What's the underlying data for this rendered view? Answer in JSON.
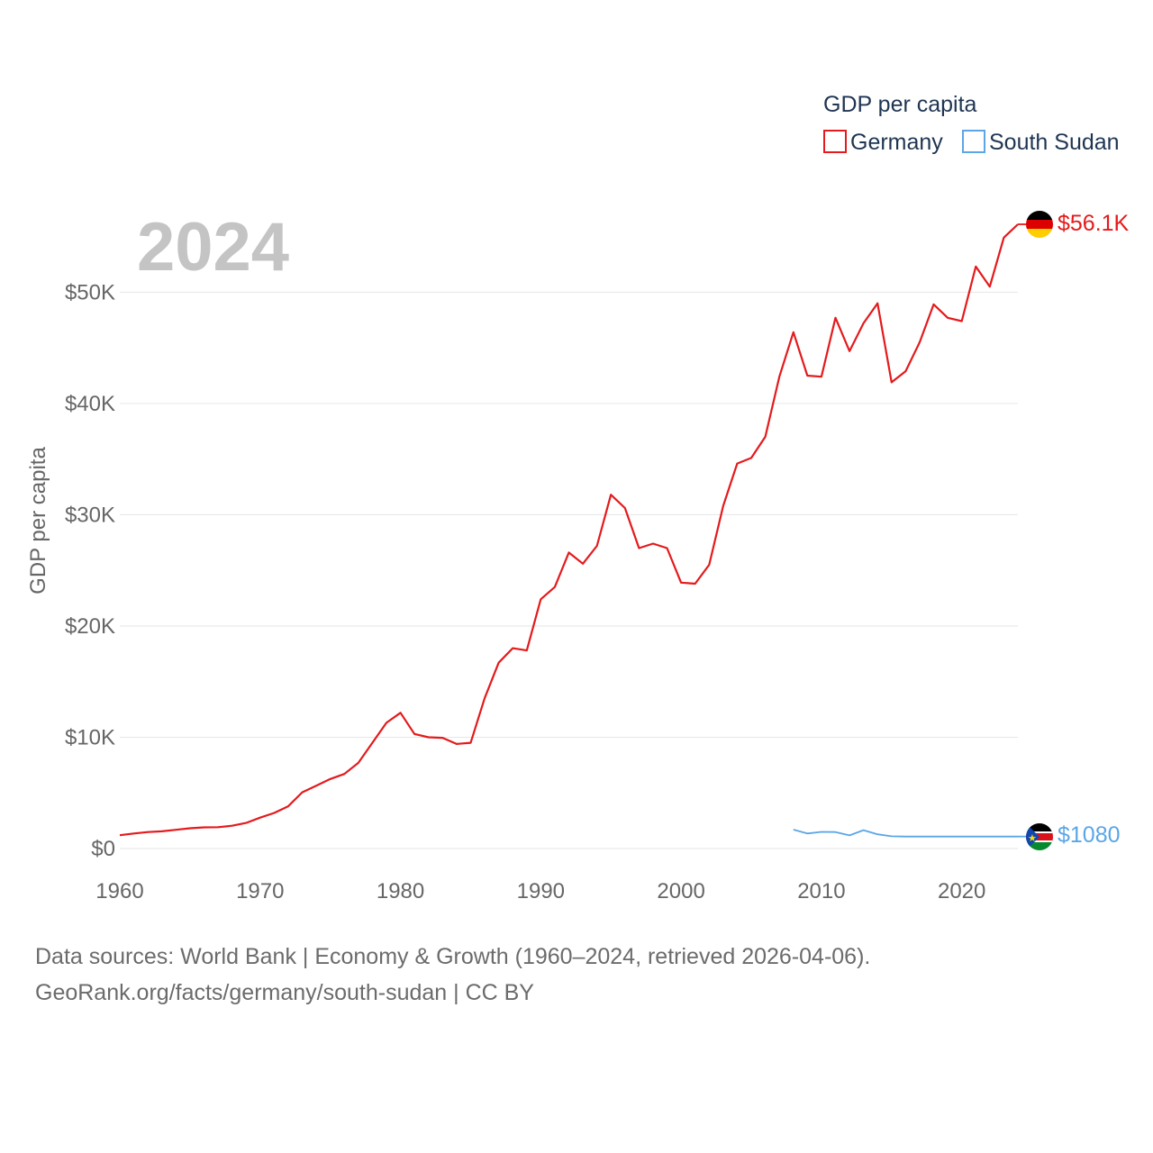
{
  "chart_data": {
    "type": "line",
    "title": "GDP per capita",
    "ylabel": "GDP per capita",
    "xlabel": "",
    "year_label": "2024",
    "xlim": [
      1960,
      2024
    ],
    "ylim": [
      0,
      56100
    ],
    "x_ticks": [
      {
        "value": 1960,
        "label": "1960"
      },
      {
        "value": 1970,
        "label": "1970"
      },
      {
        "value": 1980,
        "label": "1980"
      },
      {
        "value": 1990,
        "label": "1990"
      },
      {
        "value": 2000,
        "label": "2000"
      },
      {
        "value": 2010,
        "label": "2010"
      },
      {
        "value": 2020,
        "label": "2020"
      }
    ],
    "y_ticks": [
      {
        "value": 0,
        "label": "$0"
      },
      {
        "value": 10000,
        "label": "$10K"
      },
      {
        "value": 20000,
        "label": "$20K"
      },
      {
        "value": 30000,
        "label": "$30K"
      },
      {
        "value": 40000,
        "label": "$40K"
      },
      {
        "value": 50000,
        "label": "$50K"
      }
    ],
    "legend": {
      "title": "GDP per capita",
      "position": "top-right"
    },
    "series": [
      {
        "name": "Germany",
        "color": "#e41a1c",
        "end_label": "$56.1K",
        "flag": "germany-flag",
        "points": [
          [
            1960,
            1200
          ],
          [
            1961,
            1350
          ],
          [
            1962,
            1480
          ],
          [
            1963,
            1550
          ],
          [
            1964,
            1680
          ],
          [
            1965,
            1820
          ],
          [
            1966,
            1900
          ],
          [
            1967,
            1920
          ],
          [
            1968,
            2050
          ],
          [
            1969,
            2300
          ],
          [
            1970,
            2780
          ],
          [
            1971,
            3200
          ],
          [
            1972,
            3800
          ],
          [
            1973,
            5050
          ],
          [
            1974,
            5650
          ],
          [
            1975,
            6250
          ],
          [
            1976,
            6700
          ],
          [
            1977,
            7700
          ],
          [
            1978,
            9500
          ],
          [
            1979,
            11300
          ],
          [
            1980,
            12200
          ],
          [
            1981,
            10300
          ],
          [
            1982,
            10000
          ],
          [
            1983,
            9950
          ],
          [
            1984,
            9400
          ],
          [
            1985,
            9500
          ],
          [
            1986,
            13500
          ],
          [
            1987,
            16700
          ],
          [
            1988,
            18000
          ],
          [
            1989,
            17800
          ],
          [
            1990,
            22400
          ],
          [
            1991,
            23500
          ],
          [
            1992,
            26600
          ],
          [
            1993,
            25600
          ],
          [
            1994,
            27200
          ],
          [
            1995,
            31800
          ],
          [
            1996,
            30600
          ],
          [
            1997,
            27000
          ],
          [
            1998,
            27400
          ],
          [
            1999,
            27000
          ],
          [
            2000,
            23900
          ],
          [
            2001,
            23800
          ],
          [
            2002,
            25500
          ],
          [
            2003,
            30800
          ],
          [
            2004,
            34600
          ],
          [
            2005,
            35100
          ],
          [
            2006,
            37000
          ],
          [
            2007,
            42400
          ],
          [
            2008,
            46400
          ],
          [
            2009,
            42500
          ],
          [
            2010,
            42400
          ],
          [
            2011,
            47700
          ],
          [
            2012,
            44700
          ],
          [
            2013,
            47200
          ],
          [
            2014,
            49000
          ],
          [
            2015,
            41900
          ],
          [
            2016,
            42900
          ],
          [
            2017,
            45500
          ],
          [
            2018,
            48900
          ],
          [
            2019,
            47700
          ],
          [
            2020,
            47400
          ],
          [
            2021,
            52300
          ],
          [
            2022,
            50500
          ],
          [
            2023,
            54900
          ],
          [
            2024,
            56100
          ]
        ]
      },
      {
        "name": "South Sudan",
        "color": "#5ba6e6",
        "end_label": "$1080",
        "flag": "south-sudan-flag",
        "points": [
          [
            2008,
            1700
          ],
          [
            2009,
            1350
          ],
          [
            2010,
            1500
          ],
          [
            2011,
            1480
          ],
          [
            2012,
            1180
          ],
          [
            2013,
            1650
          ],
          [
            2014,
            1280
          ],
          [
            2015,
            1100
          ],
          [
            2016,
            1080
          ],
          [
            2017,
            1080
          ],
          [
            2018,
            1080
          ],
          [
            2019,
            1080
          ],
          [
            2020,
            1080
          ],
          [
            2021,
            1080
          ],
          [
            2022,
            1080
          ],
          [
            2023,
            1080
          ],
          [
            2024,
            1080
          ]
        ]
      }
    ]
  },
  "source": {
    "line1": "Data sources: World Bank | Economy & Growth (1960–2024, retrieved 2026-04-06).",
    "line2": "GeoRank.org/facts/germany/south-sudan | CC BY"
  }
}
